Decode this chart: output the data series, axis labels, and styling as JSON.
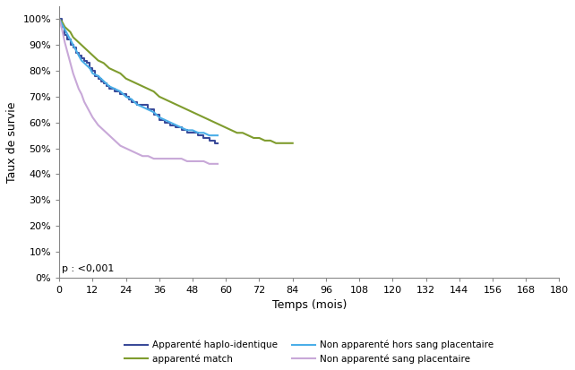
{
  "title": "",
  "xlabel": "Temps (mois)",
  "ylabel": "Taux de survie",
  "xlim": [
    0,
    180
  ],
  "ylim": [
    0,
    1.05
  ],
  "xticks": [
    0,
    12,
    24,
    36,
    48,
    60,
    72,
    84,
    96,
    108,
    120,
    132,
    144,
    156,
    168,
    180
  ],
  "yticks": [
    0,
    0.1,
    0.2,
    0.3,
    0.4,
    0.5,
    0.6,
    0.7,
    0.8,
    0.9,
    1.0
  ],
  "yticklabels": [
    "0%",
    "10%",
    "20%",
    "30%",
    "40%",
    "50%",
    "60%",
    "70%",
    "80%",
    "90%",
    "100%"
  ],
  "pvalue": "p : <0,001",
  "background_color": "#ffffff",
  "series": {
    "haplo": {
      "label": "Apparenté haplo-identique",
      "color": "#3a4a99",
      "linewidth": 1.5,
      "step": true,
      "x": [
        0,
        1,
        2,
        3,
        4,
        5,
        6,
        7,
        8,
        9,
        10,
        11,
        12,
        13,
        14,
        15,
        16,
        17,
        18,
        19,
        20,
        21,
        22,
        23,
        24,
        25,
        26,
        27,
        28,
        29,
        30,
        32,
        34,
        36,
        38,
        40,
        42,
        44,
        46,
        48,
        50,
        52,
        54,
        56,
        57
      ],
      "y": [
        1.0,
        0.97,
        0.94,
        0.92,
        0.9,
        0.89,
        0.87,
        0.86,
        0.85,
        0.84,
        0.83,
        0.81,
        0.8,
        0.78,
        0.77,
        0.76,
        0.75,
        0.74,
        0.73,
        0.73,
        0.72,
        0.72,
        0.71,
        0.71,
        0.7,
        0.69,
        0.68,
        0.68,
        0.67,
        0.67,
        0.67,
        0.65,
        0.63,
        0.61,
        0.6,
        0.59,
        0.58,
        0.57,
        0.56,
        0.56,
        0.55,
        0.54,
        0.53,
        0.52,
        0.52
      ]
    },
    "match": {
      "label": "apparenté match",
      "color": "#7f9c2e",
      "linewidth": 1.5,
      "step": false,
      "x": [
        0,
        1,
        2,
        3,
        4,
        5,
        6,
        7,
        8,
        9,
        10,
        11,
        12,
        14,
        16,
        18,
        20,
        22,
        24,
        26,
        28,
        30,
        32,
        34,
        36,
        38,
        40,
        42,
        44,
        46,
        48,
        50,
        52,
        54,
        56,
        58,
        60,
        62,
        64,
        66,
        68,
        70,
        72,
        74,
        76,
        78,
        80,
        82,
        84
      ],
      "y": [
        1.0,
        0.99,
        0.97,
        0.96,
        0.95,
        0.93,
        0.92,
        0.91,
        0.9,
        0.89,
        0.88,
        0.87,
        0.86,
        0.84,
        0.83,
        0.81,
        0.8,
        0.79,
        0.77,
        0.76,
        0.75,
        0.74,
        0.73,
        0.72,
        0.7,
        0.69,
        0.68,
        0.67,
        0.66,
        0.65,
        0.64,
        0.63,
        0.62,
        0.61,
        0.6,
        0.59,
        0.58,
        0.57,
        0.56,
        0.56,
        0.55,
        0.54,
        0.54,
        0.53,
        0.53,
        0.52,
        0.52,
        0.52,
        0.52
      ]
    },
    "non_app_hors": {
      "label": "Non apparenté hors sang placentaire",
      "color": "#4baee8",
      "linewidth": 1.5,
      "step": false,
      "x": [
        0,
        1,
        2,
        3,
        4,
        5,
        6,
        7,
        8,
        9,
        10,
        11,
        12,
        14,
        16,
        18,
        20,
        22,
        24,
        26,
        28,
        30,
        32,
        34,
        36,
        38,
        40,
        42,
        44,
        46,
        48,
        50,
        52,
        54,
        56,
        57
      ],
      "y": [
        1.0,
        0.98,
        0.96,
        0.94,
        0.92,
        0.9,
        0.88,
        0.86,
        0.84,
        0.83,
        0.82,
        0.81,
        0.79,
        0.78,
        0.76,
        0.74,
        0.73,
        0.72,
        0.7,
        0.69,
        0.67,
        0.66,
        0.65,
        0.64,
        0.62,
        0.61,
        0.6,
        0.59,
        0.58,
        0.57,
        0.57,
        0.56,
        0.56,
        0.55,
        0.55,
        0.55
      ]
    },
    "non_app_sang": {
      "label": "Non apparenté sang placentaire",
      "color": "#c8a8d8",
      "linewidth": 1.5,
      "step": false,
      "x": [
        0,
        1,
        2,
        3,
        4,
        5,
        6,
        7,
        8,
        9,
        10,
        11,
        12,
        14,
        16,
        18,
        20,
        22,
        24,
        26,
        28,
        30,
        32,
        34,
        36,
        38,
        40,
        42,
        44,
        46,
        48,
        50,
        52,
        54,
        56,
        57
      ],
      "y": [
        1.0,
        0.96,
        0.91,
        0.87,
        0.83,
        0.79,
        0.76,
        0.73,
        0.71,
        0.68,
        0.66,
        0.64,
        0.62,
        0.59,
        0.57,
        0.55,
        0.53,
        0.51,
        0.5,
        0.49,
        0.48,
        0.47,
        0.47,
        0.46,
        0.46,
        0.46,
        0.46,
        0.46,
        0.46,
        0.45,
        0.45,
        0.45,
        0.45,
        0.44,
        0.44,
        0.44
      ]
    }
  }
}
